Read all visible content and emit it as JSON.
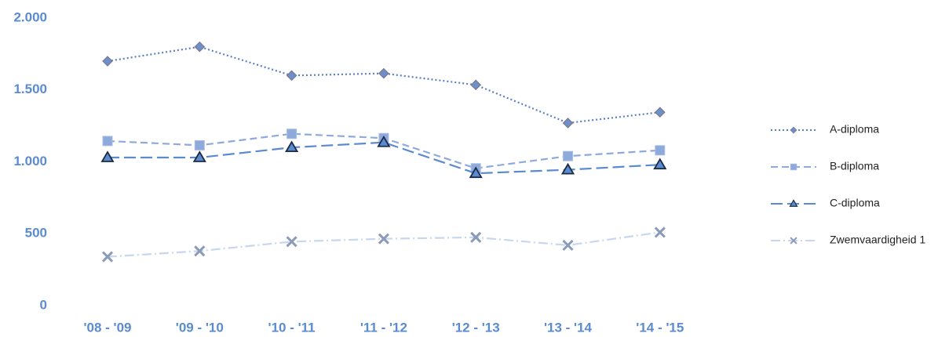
{
  "chart_data": {
    "type": "line",
    "categories": [
      "'08 - '09",
      "'09 - '10",
      "'10 - '11",
      "'11 - '12",
      "'12 - '13",
      "'13 - '14",
      "'14 - '15"
    ],
    "series": [
      {
        "name": "A-diploma",
        "color": "#5b7fc4",
        "marker": "diamond",
        "dash": "2,3",
        "values": [
          1700,
          1800,
          1600,
          1615,
          1535,
          1270,
          1345
        ]
      },
      {
        "name": "B-diploma",
        "color": "#8eaadc",
        "marker": "square",
        "dash": "9,5",
        "values": [
          1145,
          1115,
          1195,
          1165,
          955,
          1040,
          1080
        ]
      },
      {
        "name": "C-diploma",
        "color": "#5a8ad0",
        "marker": "triangle",
        "dash": "15,6",
        "values": [
          1030,
          1030,
          1100,
          1135,
          920,
          945,
          980
        ]
      },
      {
        "name": "Zwemvaardigheid 1",
        "color": "#c6d7ee",
        "marker": "x",
        "dash": "12,4,2,4",
        "values": [
          340,
          380,
          445,
          465,
          475,
          420,
          510
        ]
      }
    ],
    "ylim": [
      0,
      2000
    ],
    "yticks": [
      0,
      500,
      {
        "value": 1000,
        "label": "1.000"
      },
      {
        "value": 1500,
        "label": "1.500"
      },
      {
        "value": 2000,
        "label": "2.000"
      }
    ],
    "grid": false,
    "legend": "right"
  }
}
